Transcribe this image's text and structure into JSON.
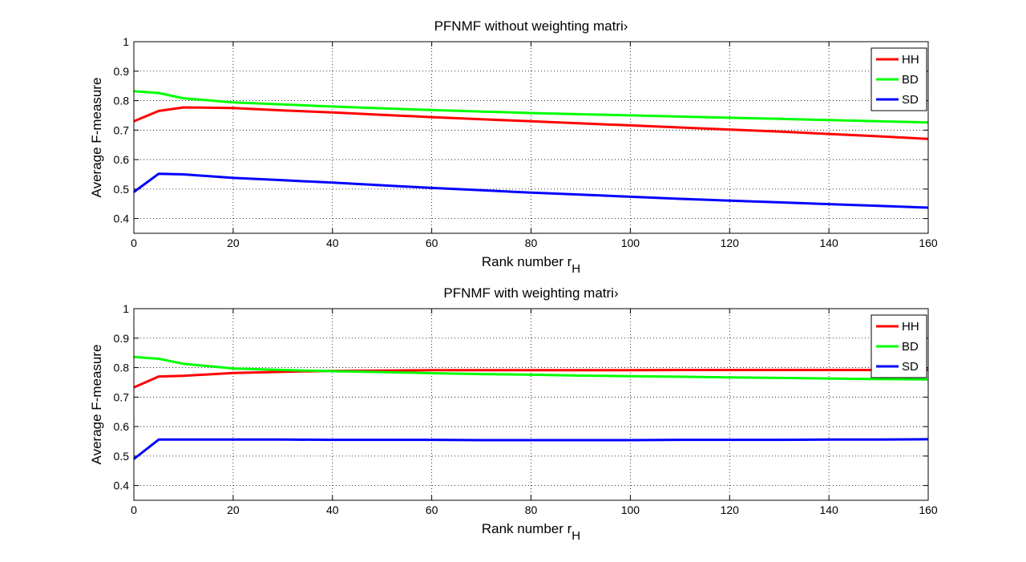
{
  "chart_data": [
    {
      "type": "line",
      "title": "PFNMF without weighting matri›",
      "xlabel": "Rank number r",
      "xlabel_sub": "H",
      "ylabel": "Average F-measure",
      "xlim": [
        0,
        160
      ],
      "ylim": [
        0.35,
        1
      ],
      "xticks": [
        0,
        20,
        40,
        60,
        80,
        100,
        120,
        140,
        160
      ],
      "yticks": [
        0.4,
        0.5,
        0.6,
        0.7,
        0.8,
        0.9,
        1
      ],
      "ytick_labels": [
        "0.4",
        "0.5",
        "0.6",
        "0.7",
        "0.8",
        "0.9",
        "1"
      ],
      "grid": true,
      "legend_position": "top-right",
      "x": [
        0,
        5,
        10,
        20,
        30,
        40,
        50,
        60,
        70,
        80,
        90,
        100,
        110,
        120,
        130,
        140,
        150,
        160
      ],
      "series": [
        {
          "name": "HH",
          "color": "#ff0000",
          "values": [
            0.73,
            0.765,
            0.777,
            0.775,
            0.767,
            0.76,
            0.752,
            0.744,
            0.737,
            0.73,
            0.723,
            0.716,
            0.709,
            0.702,
            0.695,
            0.687,
            0.679,
            0.67
          ]
        },
        {
          "name": "BD",
          "color": "#00ff00",
          "values": [
            0.832,
            0.826,
            0.808,
            0.794,
            0.787,
            0.78,
            0.774,
            0.768,
            0.763,
            0.758,
            0.754,
            0.75,
            0.746,
            0.742,
            0.738,
            0.734,
            0.73,
            0.726
          ]
        },
        {
          "name": "SD",
          "color": "#0000ff",
          "values": [
            0.49,
            0.552,
            0.55,
            0.538,
            0.53,
            0.522,
            0.513,
            0.504,
            0.496,
            0.488,
            0.481,
            0.474,
            0.467,
            0.461,
            0.455,
            0.449,
            0.443,
            0.437
          ]
        }
      ]
    },
    {
      "type": "line",
      "title": "PFNMF with weighting matri›",
      "xlabel": "Rank number r",
      "xlabel_sub": "H",
      "ylabel": "Average F-measure",
      "xlim": [
        0,
        160
      ],
      "ylim": [
        0.35,
        1
      ],
      "xticks": [
        0,
        20,
        40,
        60,
        80,
        100,
        120,
        140,
        160
      ],
      "yticks": [
        0.4,
        0.5,
        0.6,
        0.7,
        0.8,
        0.9,
        1
      ],
      "ytick_labels": [
        "0.4",
        "0.5",
        "0.6",
        "0.7",
        "0.8",
        "0.9",
        "1"
      ],
      "grid": true,
      "legend_position": "top-right",
      "x": [
        0,
        5,
        10,
        20,
        30,
        40,
        50,
        60,
        70,
        80,
        90,
        100,
        110,
        120,
        130,
        140,
        150,
        160
      ],
      "series": [
        {
          "name": "HH",
          "color": "#ff0000",
          "values": [
            0.733,
            0.77,
            0.772,
            0.782,
            0.786,
            0.789,
            0.79,
            0.791,
            0.791,
            0.791,
            0.791,
            0.791,
            0.792,
            0.792,
            0.792,
            0.792,
            0.792,
            0.793
          ]
        },
        {
          "name": "BD",
          "color": "#00ff00",
          "values": [
            0.836,
            0.83,
            0.813,
            0.797,
            0.792,
            0.788,
            0.785,
            0.781,
            0.778,
            0.776,
            0.773,
            0.771,
            0.769,
            0.767,
            0.765,
            0.763,
            0.761,
            0.76
          ]
        },
        {
          "name": "SD",
          "color": "#0000ff",
          "values": [
            0.49,
            0.556,
            0.556,
            0.556,
            0.556,
            0.555,
            0.555,
            0.555,
            0.554,
            0.554,
            0.554,
            0.554,
            0.555,
            0.555,
            0.555,
            0.556,
            0.556,
            0.557
          ]
        }
      ]
    }
  ]
}
